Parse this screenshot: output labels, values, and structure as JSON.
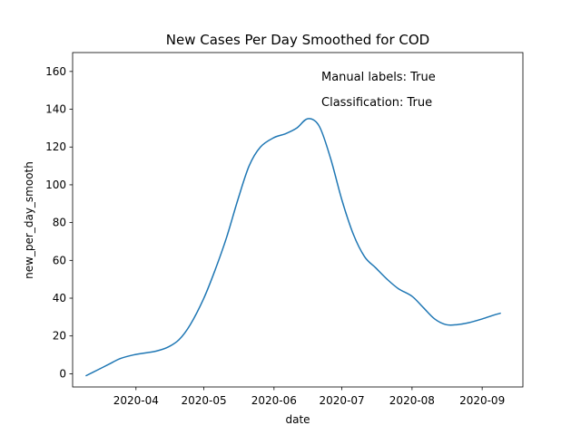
{
  "chart_data": {
    "type": "line",
    "title": "New Cases Per Day Smoothed for COD",
    "xlabel": "date",
    "ylabel": "new_per_day_smooth",
    "ylim": [
      -7,
      170
    ],
    "xlim": [
      "2020-03-04",
      "2020-09-19"
    ],
    "grid": false,
    "y_ticks": [
      0,
      20,
      40,
      60,
      80,
      100,
      120,
      140,
      160
    ],
    "x_ticks": [
      "2020-04",
      "2020-05",
      "2020-06",
      "2020-07",
      "2020-08",
      "2020-09"
    ],
    "annotations": [
      "Manual labels: True",
      "Classification: True"
    ],
    "line_color": "#1f77b4",
    "series": [
      {
        "x": [
          "2020-03-10",
          "2020-03-15",
          "2020-03-20",
          "2020-03-25",
          "2020-03-31",
          "2020-04-05",
          "2020-04-10",
          "2020-04-15",
          "2020-04-20",
          "2020-04-25",
          "2020-05-01",
          "2020-05-06",
          "2020-05-11",
          "2020-05-16",
          "2020-05-21",
          "2020-05-26",
          "2020-06-01",
          "2020-06-06",
          "2020-06-11",
          "2020-06-16",
          "2020-06-21",
          "2020-06-26",
          "2020-07-01",
          "2020-07-06",
          "2020-07-11",
          "2020-07-16",
          "2020-07-21",
          "2020-07-26",
          "2020-08-01",
          "2020-08-06",
          "2020-08-11",
          "2020-08-16",
          "2020-08-21",
          "2020-08-26",
          "2020-09-01",
          "2020-09-06",
          "2020-09-09"
        ],
        "y": [
          -1,
          2,
          5,
          8,
          10,
          11,
          12,
          14,
          18,
          26,
          40,
          55,
          72,
          92,
          110,
          120,
          125,
          127,
          130,
          135,
          131,
          114,
          92,
          74,
          62,
          56,
          50,
          45,
          41,
          35,
          29,
          26,
          26,
          27,
          29,
          31,
          32
        ]
      }
    ]
  }
}
